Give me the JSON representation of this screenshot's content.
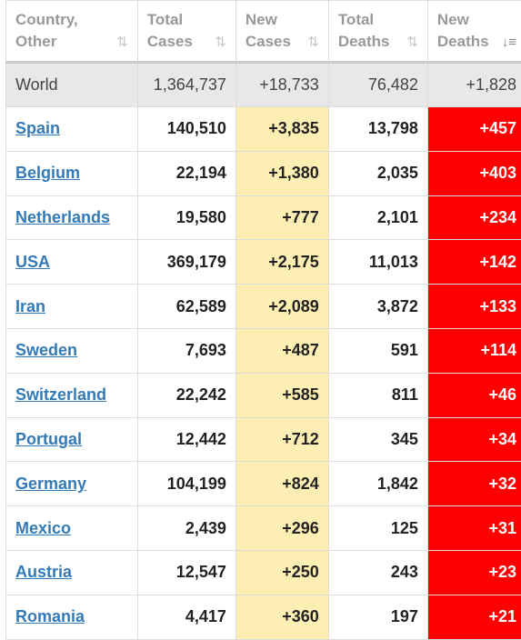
{
  "colors": {
    "new_cases_bg": "#fdeeb4",
    "new_deaths_bg": "#ff0000",
    "link": "#337ab7",
    "world_row_bg": "#e8e8e8"
  },
  "headers": [
    {
      "line1": "Country,",
      "line2": "Other",
      "sort_icon": "sort-icon"
    },
    {
      "line1": "Total",
      "line2": "Cases",
      "sort_icon": "sort-icon"
    },
    {
      "line1": "New",
      "line2": "Cases",
      "sort_icon": "sort-icon"
    },
    {
      "line1": "Total",
      "line2": "Deaths",
      "sort_icon": "sort-icon"
    },
    {
      "line1": "New",
      "line2": "Deaths",
      "sort_icon": "sort-descending-icon"
    }
  ],
  "world": {
    "country": "World",
    "total_cases": "1,364,737",
    "new_cases": "+18,733",
    "total_deaths": "76,482",
    "new_deaths": "+1,828"
  },
  "rows": [
    {
      "country": "Spain",
      "total_cases": "140,510",
      "new_cases": "+3,835",
      "total_deaths": "13,798",
      "new_deaths": "+457"
    },
    {
      "country": "Belgium",
      "total_cases": "22,194",
      "new_cases": "+1,380",
      "total_deaths": "2,035",
      "new_deaths": "+403"
    },
    {
      "country": "Netherlands",
      "total_cases": "19,580",
      "new_cases": "+777",
      "total_deaths": "2,101",
      "new_deaths": "+234"
    },
    {
      "country": "USA",
      "total_cases": "369,179",
      "new_cases": "+2,175",
      "total_deaths": "11,013",
      "new_deaths": "+142"
    },
    {
      "country": "Iran",
      "total_cases": "62,589",
      "new_cases": "+2,089",
      "total_deaths": "3,872",
      "new_deaths": "+133"
    },
    {
      "country": "Sweden",
      "total_cases": "7,693",
      "new_cases": "+487",
      "total_deaths": "591",
      "new_deaths": "+114"
    },
    {
      "country": "Switzerland",
      "total_cases": "22,242",
      "new_cases": "+585",
      "total_deaths": "811",
      "new_deaths": "+46"
    },
    {
      "country": "Portugal",
      "total_cases": "12,442",
      "new_cases": "+712",
      "total_deaths": "345",
      "new_deaths": "+34"
    },
    {
      "country": "Germany",
      "total_cases": "104,199",
      "new_cases": "+824",
      "total_deaths": "1,842",
      "new_deaths": "+32"
    },
    {
      "country": "Mexico",
      "total_cases": "2,439",
      "new_cases": "+296",
      "total_deaths": "125",
      "new_deaths": "+31"
    },
    {
      "country": "Austria",
      "total_cases": "12,547",
      "new_cases": "+250",
      "total_deaths": "243",
      "new_deaths": "+23"
    },
    {
      "country": "Romania",
      "total_cases": "4,417",
      "new_cases": "+360",
      "total_deaths": "197",
      "new_deaths": "+21"
    }
  ]
}
